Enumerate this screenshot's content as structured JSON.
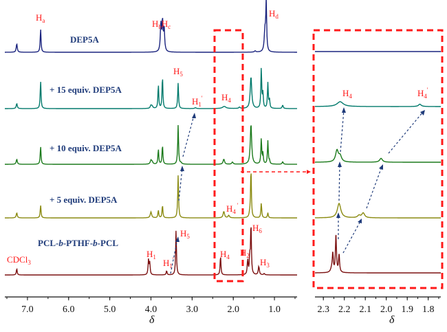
{
  "chart_data": {
    "type": "line",
    "title": "",
    "xlabel": "δ",
    "ylabel": "",
    "main_panel": {
      "xlim": [
        7.55,
        0.45
      ],
      "xticks": [
        7.0,
        6.0,
        5.0,
        4.0,
        3.0,
        2.0,
        1.0
      ],
      "xtick_labels": [
        "7.0",
        "6.0",
        "5.0",
        "4.0",
        "3.0",
        "2.0",
        "1.0"
      ],
      "series": [
        {
          "name": "DEP5A",
          "color": "#1a237e",
          "peaks": [
            {
              "ppm": 7.26,
              "height": 0.2,
              "width": 0.015
            },
            {
              "ppm": 6.68,
              "height": 0.55,
              "width": 0.012
            },
            {
              "ppm": 3.76,
              "height": 0.65,
              "width": 0.015
            },
            {
              "ppm": 3.72,
              "height": 0.7,
              "width": 0.015
            },
            {
              "ppm": 3.68,
              "height": 0.55,
              "width": 0.015
            },
            {
              "ppm": 1.47,
              "height": 0.03,
              "width": 0.02
            },
            {
              "ppm": 1.23,
              "height": 0.5,
              "width": 0.02
            },
            {
              "ppm": 1.2,
              "height": 1.15,
              "width": 0.012
            }
          ]
        },
        {
          "name": "+ 15 equiv. DEP5A",
          "color": "#00796b",
          "peaks": [
            {
              "ppm": 7.26,
              "height": 0.12,
              "width": 0.015
            },
            {
              "ppm": 6.68,
              "height": 0.65,
              "width": 0.012
            },
            {
              "ppm": 4.0,
              "height": 0.07,
              "width": 0.02
            },
            {
              "ppm": 3.97,
              "height": 0.05,
              "width": 0.02
            },
            {
              "ppm": 3.82,
              "height": 0.55,
              "width": 0.012
            },
            {
              "ppm": 3.72,
              "height": 0.75,
              "width": 0.012
            },
            {
              "ppm": 3.34,
              "height": 0.6,
              "width": 0.012
            },
            {
              "ppm": 2.92,
              "height": 0.02,
              "width": 0.02
            },
            {
              "ppm": 2.22,
              "height": 0.05,
              "width": 0.05
            },
            {
              "ppm": 1.85,
              "height": 0.03,
              "width": 0.02
            },
            {
              "ppm": 1.57,
              "height": 0.75,
              "width": 0.022
            },
            {
              "ppm": 1.32,
              "height": 0.95,
              "width": 0.012
            },
            {
              "ppm": 1.28,
              "height": 0.35,
              "width": 0.012
            },
            {
              "ppm": 1.16,
              "height": 0.6,
              "width": 0.012
            },
            {
              "ppm": 1.12,
              "height": 0.2,
              "width": 0.012
            },
            {
              "ppm": 0.8,
              "height": 0.08,
              "width": 0.015
            }
          ]
        },
        {
          "name": "+ 10 equiv. DEP5A",
          "color": "#1b7a1b",
          "peaks": [
            {
              "ppm": 7.26,
              "height": 0.12,
              "width": 0.015
            },
            {
              "ppm": 6.68,
              "height": 0.42,
              "width": 0.012
            },
            {
              "ppm": 4.0,
              "height": 0.09,
              "width": 0.02
            },
            {
              "ppm": 3.97,
              "height": 0.05,
              "width": 0.02
            },
            {
              "ppm": 3.82,
              "height": 0.35,
              "width": 0.012
            },
            {
              "ppm": 3.72,
              "height": 0.45,
              "width": 0.012
            },
            {
              "ppm": 3.34,
              "height": 0.92,
              "width": 0.012
            },
            {
              "ppm": 3.27,
              "height": 0.03,
              "width": 0.02
            },
            {
              "ppm": 2.23,
              "height": 0.12,
              "width": 0.02
            },
            {
              "ppm": 2.02,
              "height": 0.05,
              "width": 0.02
            },
            {
              "ppm": 1.57,
              "height": 0.95,
              "width": 0.02
            },
            {
              "ppm": 1.32,
              "height": 0.6,
              "width": 0.012
            },
            {
              "ppm": 1.28,
              "height": 0.25,
              "width": 0.012
            },
            {
              "ppm": 1.16,
              "height": 0.55,
              "width": 0.012
            },
            {
              "ppm": 1.12,
              "height": 0.08,
              "width": 0.012
            },
            {
              "ppm": 0.8,
              "height": 0.06,
              "width": 0.015
            }
          ]
        },
        {
          "name": "+ 5 equiv. DEP5A",
          "color": "#8a8a10",
          "peaks": [
            {
              "ppm": 7.26,
              "height": 0.12,
              "width": 0.015
            },
            {
              "ppm": 6.68,
              "height": 0.3,
              "width": 0.012
            },
            {
              "ppm": 4.0,
              "height": 0.14,
              "width": 0.02
            },
            {
              "ppm": 3.82,
              "height": 0.18,
              "width": 0.012
            },
            {
              "ppm": 3.72,
              "height": 0.3,
              "width": 0.012
            },
            {
              "ppm": 3.34,
              "height": 1.0,
              "width": 0.012
            },
            {
              "ppm": 2.23,
              "height": 0.15,
              "width": 0.02
            },
            {
              "ppm": 2.11,
              "height": 0.06,
              "width": 0.02
            },
            {
              "ppm": 1.6,
              "height": 0.08,
              "width": 0.02
            },
            {
              "ppm": 1.57,
              "height": 1.15,
              "width": 0.012
            },
            {
              "ppm": 1.32,
              "height": 0.35,
              "width": 0.012
            },
            {
              "ppm": 1.16,
              "height": 0.12,
              "width": 0.012
            }
          ]
        },
        {
          "name": "PCL-b-PTHF-b-PCL",
          "color": "#7b1010",
          "peaks": [
            {
              "ppm": 7.26,
              "height": 0.15,
              "width": 0.012
            },
            {
              "ppm": 4.06,
              "height": 0.35,
              "width": 0.012
            },
            {
              "ppm": 4.03,
              "height": 0.28,
              "width": 0.012
            },
            {
              "ppm": 3.62,
              "height": 0.1,
              "width": 0.012
            },
            {
              "ppm": 3.39,
              "height": 1.05,
              "width": 0.012
            },
            {
              "ppm": 2.31,
              "height": 0.45,
              "width": 0.012
            },
            {
              "ppm": 1.65,
              "height": 0.35,
              "width": 0.012
            },
            {
              "ppm": 1.6,
              "height": 0.4,
              "width": 0.012
            },
            {
              "ppm": 1.57,
              "height": 1.2,
              "width": 0.012
            },
            {
              "ppm": 1.38,
              "height": 0.2,
              "width": 0.015
            },
            {
              "ppm": 1.25,
              "height": 0.03,
              "width": 0.015
            }
          ]
        }
      ]
    },
    "inset_panel": {
      "xlim": [
        2.34,
        1.74
      ],
      "xticks": [
        2.3,
        2.2,
        2.1,
        2.0,
        1.9,
        1.8
      ],
      "xtick_labels": [
        "2.3",
        "2.2",
        "2.1",
        "2.0",
        "1.9",
        "1.8"
      ],
      "series": [
        {
          "name": "DEP5A",
          "color": "#1a237e",
          "peaks": []
        },
        {
          "name": "+ 15 equiv. DEP5A",
          "color": "#00796b",
          "peaks": [
            {
              "ppm": 2.22,
              "height": 0.25,
              "width": 0.018
            },
            {
              "ppm": 1.84,
              "height": 0.12,
              "width": 0.008
            }
          ]
        },
        {
          "name": "+ 10 equiv. DEP5A",
          "color": "#1b7a1b",
          "peaks": [
            {
              "ppm": 2.235,
              "height": 0.6,
              "width": 0.008
            },
            {
              "ppm": 2.22,
              "height": 0.3,
              "width": 0.008
            },
            {
              "ppm": 2.025,
              "height": 0.2,
              "width": 0.008
            }
          ]
        },
        {
          "name": "+ 5 equiv. DEP5A",
          "color": "#8a8a10",
          "peaks": [
            {
              "ppm": 2.225,
              "height": 0.75,
              "width": 0.01
            },
            {
              "ppm": 2.11,
              "height": 0.25,
              "width": 0.008
            },
            {
              "ppm": 2.13,
              "height": 0.12,
              "width": 0.008
            }
          ]
        },
        {
          "name": "PCL-b-PTHF-b-PCL",
          "color": "#7b1010",
          "peaks": [
            {
              "ppm": 2.255,
              "height": 0.9,
              "width": 0.003
            },
            {
              "ppm": 2.24,
              "height": 1.9,
              "width": 0.003
            },
            {
              "ppm": 2.225,
              "height": 0.9,
              "width": 0.003
            },
            {
              "ppm": 2.26,
              "height": 0.2,
              "width": 0.006
            }
          ]
        }
      ]
    },
    "legend": "none"
  },
  "labels": {
    "series_names": [
      "DEP5A",
      "+ 15 equiv. DEP5A",
      "+ 10 equiv. DEP5A",
      "+ 5 equiv. DEP5A"
    ],
    "polymer_name": {
      "part1": "PCL-",
      "italic_b1": "b",
      "part2": "-PTHF-",
      "italic_b2": "b",
      "part3": "-PCL"
    },
    "peak_labels": {
      "Ha": {
        "main": "H",
        "sub": "a"
      },
      "HbHc": {
        "main1": "H",
        "sub1": "b",
        "main2": "H",
        "sub2": "c"
      },
      "Hd": {
        "main": "H",
        "sub": "d"
      },
      "H5_top": {
        "main": "H",
        "sub": "5"
      },
      "H1p_top": {
        "main": "H",
        "sub": "1",
        "prime": "'"
      },
      "H4_top": {
        "main": "H",
        "sub": "4"
      },
      "H4p_mid": {
        "main": "H",
        "sub": "4",
        "prime": "'"
      },
      "CDCl3": {
        "main": "CDCl",
        "sub": "3"
      },
      "H1": {
        "main": "H",
        "sub": "1"
      },
      "H1p": {
        "main": "H",
        "sub": "1",
        "prime": "'"
      },
      "H5": {
        "main": "H",
        "sub": "5"
      },
      "H4": {
        "main": "H",
        "sub": "4"
      },
      "H2": {
        "main": "H",
        "sub": "2"
      },
      "H6": {
        "main": "H",
        "sub": "6"
      },
      "H3": {
        "main": "H",
        "sub": "3"
      },
      "inset_H4": {
        "main": "H",
        "sub": "4"
      },
      "inset_H4p": {
        "main": "H",
        "sub": "4",
        "prime": "'"
      }
    },
    "axis_title_main": "δ",
    "axis_title_inset": "δ"
  },
  "colors": {
    "annotation_red": "#ff1a1a",
    "label_blue": "#1f3b7a",
    "arrow_blue": "#1f3b7a"
  }
}
